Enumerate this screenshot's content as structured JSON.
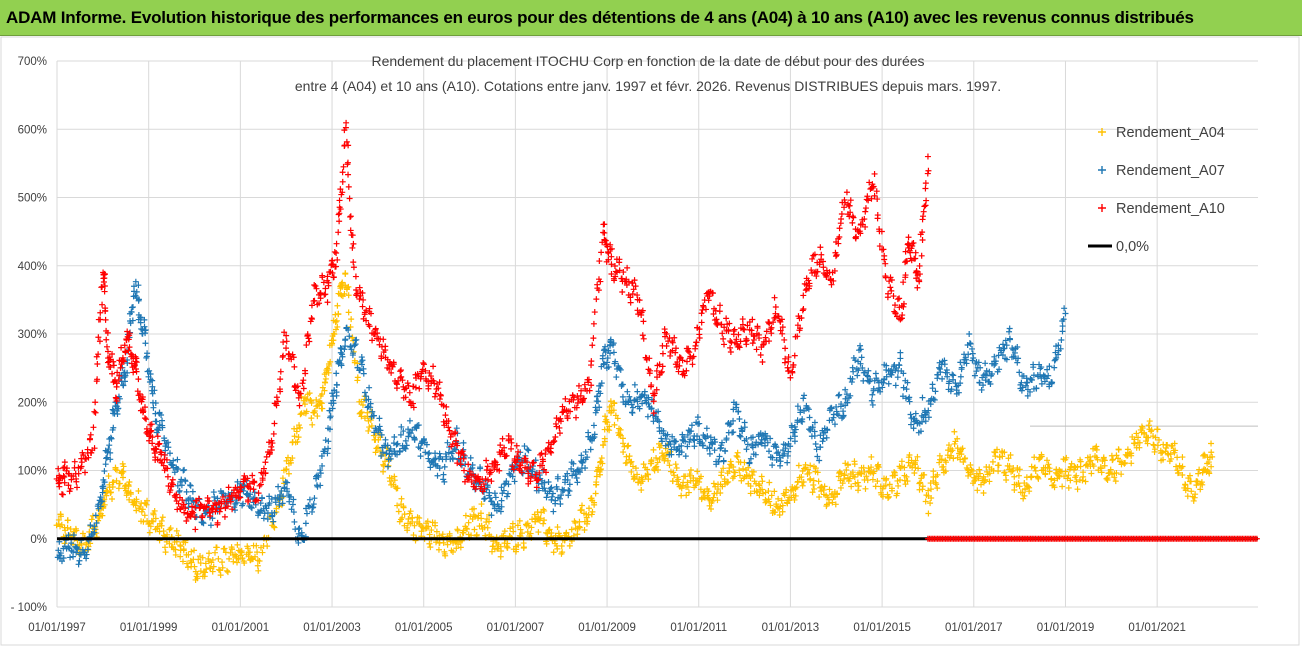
{
  "banner": {
    "title": "ADAM Informe. Evolution historique des performances en euros pour des détentions de 4 ans (A04) à 10 ans (A10) avec les revenus connus distribués"
  },
  "chart_data": {
    "type": "scatter",
    "title_line1": "Rendement du placement ITOCHU Corp en fonction de la date de début pour des durées",
    "title_line2": "entre 4 (A04) et 10 ans (A10). Cotations entre janv. 1997 et févr.  2026. Revenus DISTRIBUES depuis mars. 1997.",
    "x_tick_labels": [
      "01/01/1997",
      "01/01/1999",
      "01/01/2001",
      "01/01/2003",
      "01/01/2005",
      "01/01/2007",
      "01/01/2009",
      "01/01/2011",
      "01/01/2013",
      "01/01/2015",
      "01/01/2017",
      "01/01/2019",
      "01/01/2021"
    ],
    "y_tick_labels": [
      "- 100%",
      "0%",
      "100%",
      "200%",
      "300%",
      "400%",
      "500%",
      "600%",
      "700%"
    ],
    "xlim": [
      1997.0,
      2023.2
    ],
    "ylim": [
      -100,
      700
    ],
    "legend_position": "top-right",
    "series": [
      {
        "name": "Rendement_A04",
        "color": "#ffc000",
        "x": [
          1997.0,
          1997.3,
          1997.6,
          1997.9,
          1998.1,
          1998.4,
          1998.6,
          1998.9,
          1999.2,
          1999.5,
          1999.8,
          2000.1,
          2000.4,
          2000.8,
          2001.1,
          2001.4,
          2001.8,
          2002.1,
          2002.4,
          2002.7,
          2002.9,
          2003.1,
          2003.3,
          2003.6,
          2003.9,
          2004.2,
          2004.5,
          2004.8,
          2005.1,
          2005.4,
          2005.7,
          2006.0,
          2006.3,
          2006.6,
          2006.9,
          2007.2,
          2007.5,
          2007.8,
          2008.1,
          2008.4,
          2008.7,
          2008.9,
          2009.1,
          2009.4,
          2009.7,
          2010.0,
          2010.3,
          2010.6,
          2010.9,
          2011.2,
          2011.5,
          2011.8,
          2012.1,
          2012.4,
          2012.7,
          2013.0,
          2013.3,
          2013.6,
          2013.9,
          2014.2,
          2014.5,
          2014.8,
          2015.1,
          2015.4,
          2015.7,
          2016.0,
          2016.3,
          2016.6,
          2016.9,
          2017.2,
          2017.5,
          2017.8,
          2018.1,
          2018.4,
          2018.7,
          2019.0,
          2019.3,
          2019.6,
          2019.9,
          2020.2,
          2020.5,
          2020.8,
          2021.1,
          2021.4,
          2021.7,
          2022.0,
          2022.2
        ],
        "y": [
          25,
          5,
          -10,
          30,
          70,
          100,
          60,
          40,
          20,
          -10,
          -15,
          -45,
          -35,
          -30,
          -20,
          -30,
          40,
          120,
          200,
          180,
          250,
          330,
          390,
          200,
          160,
          110,
          40,
          20,
          10,
          0,
          -10,
          20,
          30,
          -15,
          0,
          10,
          30,
          0,
          -10,
          20,
          50,
          130,
          200,
          130,
          80,
          110,
          130,
          70,
          90,
          60,
          80,
          110,
          90,
          70,
          50,
          60,
          100,
          80,
          60,
          100,
          90,
          100,
          70,
          90,
          110,
          60,
          110,
          140,
          90,
          80,
          120,
          100,
          70,
          110,
          90,
          100,
          90,
          120,
          100,
          110,
          140,
          160,
          130,
          120,
          70,
          100,
          120
        ]
      },
      {
        "name": "Rendement_A07",
        "color": "#1f77b4",
        "x": [
          1997.0,
          1997.3,
          1997.6,
          1997.9,
          1998.1,
          1998.3,
          1998.5,
          1998.7,
          1998.9,
          1999.1,
          1999.3,
          1999.6,
          1999.9,
          2000.2,
          2000.5,
          2000.8,
          2001.1,
          2001.4,
          2001.7,
          2002.0,
          2002.3,
          2002.6,
          2002.9,
          2003.1,
          2003.3,
          2003.6,
          2003.9,
          2004.2,
          2004.5,
          2004.8,
          2005.1,
          2005.4,
          2005.7,
          2006.0,
          2006.3,
          2006.6,
          2006.9,
          2007.2,
          2007.5,
          2007.8,
          2008.1,
          2008.4,
          2008.7,
          2008.9,
          2009.1,
          2009.4,
          2009.7,
          2010.0,
          2010.3,
          2010.6,
          2010.9,
          2011.2,
          2011.5,
          2011.8,
          2012.1,
          2012.4,
          2012.7,
          2013.0,
          2013.3,
          2013.6,
          2013.9,
          2014.2,
          2014.5,
          2014.8,
          2015.1,
          2015.4,
          2015.7,
          2016.0,
          2016.3,
          2016.6,
          2016.9,
          2017.2,
          2017.5,
          2017.8,
          2018.1,
          2018.4,
          2018.7,
          2019.0
        ],
        "y": [
          -25,
          -10,
          -20,
          40,
          120,
          200,
          250,
          370,
          300,
          200,
          150,
          100,
          60,
          30,
          50,
          60,
          70,
          50,
          40,
          80,
          0,
          60,
          150,
          230,
          300,
          260,
          180,
          120,
          140,
          160,
          120,
          100,
          140,
          100,
          80,
          40,
          100,
          120,
          90,
          60,
          80,
          100,
          150,
          250,
          290,
          200,
          210,
          190,
          140,
          130,
          160,
          140,
          120,
          190,
          130,
          150,
          120,
          140,
          200,
          130,
          180,
          200,
          270,
          210,
          240,
          250,
          170,
          190,
          260,
          220,
          280,
          230,
          260,
          290,
          220,
          240,
          230,
          330
        ]
      },
      {
        "name": "Rendement_A10",
        "color": "#ff0000",
        "x": [
          1997.0,
          1997.2,
          1997.5,
          1997.8,
          1998.0,
          1998.1,
          1998.3,
          1998.5,
          1998.7,
          1998.9,
          1999.1,
          1999.3,
          1999.6,
          1999.9,
          2000.2,
          2000.5,
          2000.8,
          2001.1,
          2001.4,
          2001.7,
          2002.0,
          2002.3,
          2002.6,
          2002.9,
          2003.1,
          2003.3,
          2003.5,
          2003.8,
          2004.1,
          2004.4,
          2004.7,
          2005.0,
          2005.3,
          2005.6,
          2005.9,
          2006.2,
          2006.5,
          2006.8,
          2007.1,
          2007.4,
          2007.7,
          2008.0,
          2008.3,
          2008.6,
          2008.9,
          2009.1,
          2009.4,
          2009.7,
          2010.0,
          2010.3,
          2010.6,
          2010.9,
          2011.2,
          2011.5,
          2011.8,
          2012.1,
          2012.4,
          2012.7,
          2013.0,
          2013.3,
          2013.6,
          2013.9,
          2014.2,
          2014.5,
          2014.8,
          2015.1,
          2015.4,
          2015.6,
          2015.8,
          2016.0
        ],
        "y": [
          80,
          90,
          100,
          150,
          400,
          280,
          220,
          300,
          250,
          180,
          140,
          120,
          60,
          30,
          50,
          40,
          60,
          80,
          70,
          150,
          300,
          200,
          350,
          370,
          420,
          600,
          380,
          320,
          280,
          240,
          200,
          250,
          220,
          150,
          100,
          80,
          100,
          140,
          110,
          90,
          120,
          180,
          200,
          220,
          450,
          400,
          380,
          350,
          200,
          300,
          250,
          270,
          360,
          310,
          290,
          310,
          280,
          340,
          240,
          360,
          410,
          380,
          500,
          440,
          530,
          380,
          320,
          440,
          380,
          560
        ]
      },
      {
        "name": "0,0%",
        "color": "#000000",
        "type": "line",
        "y_value": 0
      },
      {
        "name": "Rendement_A10 (zéro)",
        "color": "#ff0000",
        "x_range": [
          2016.0,
          2023.2
        ],
        "y_value": 0,
        "show_in_legend": false
      }
    ]
  },
  "legend": {
    "items": [
      {
        "label": "Rendement_A04",
        "color": "#ffc000",
        "marker": "plus"
      },
      {
        "label": "Rendement_A07",
        "color": "#1f77b4",
        "marker": "plus"
      },
      {
        "label": "Rendement_A10",
        "color": "#ff0000",
        "marker": "plus"
      },
      {
        "label": "0,0%",
        "color": "#000000",
        "marker": "line"
      }
    ]
  }
}
